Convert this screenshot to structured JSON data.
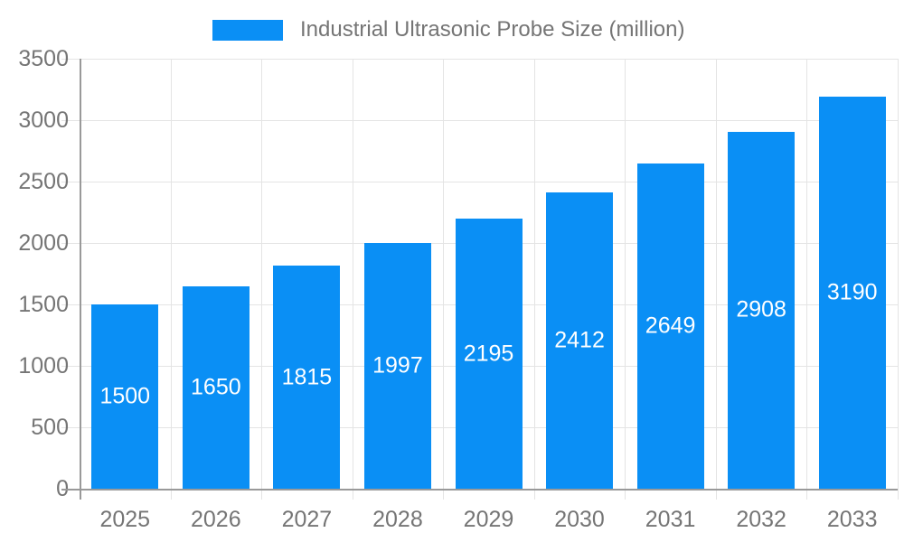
{
  "chart_data": {
    "type": "bar",
    "title": "",
    "categories": [
      "2025",
      "2026",
      "2027",
      "2028",
      "2029",
      "2030",
      "2031",
      "2032",
      "2033"
    ],
    "series": [
      {
        "name": "Industrial Ultrasonic Probe Size (million)",
        "values": [
          1500,
          1650,
          1815,
          1997,
          2195,
          2412,
          2649,
          2908,
          3190
        ]
      }
    ],
    "value_labels": [
      1500,
      1650,
      1815,
      1997,
      2195,
      2412,
      2649,
      2908,
      3190
    ],
    "xlabel": "",
    "ylabel": "",
    "ylim": [
      0,
      3500
    ],
    "yticks": [
      0,
      500,
      1000,
      1500,
      2000,
      2500,
      3000,
      3500
    ],
    "grid": true,
    "legend_position": "top",
    "value_label_position": "inside-center",
    "colors": {
      "bar": "#0A8FF5",
      "value_label": "#ffffff",
      "axis_text": "#757575",
      "axis_line": "#999999",
      "gridline": "#e4e4e4",
      "background": "#ffffff"
    }
  }
}
